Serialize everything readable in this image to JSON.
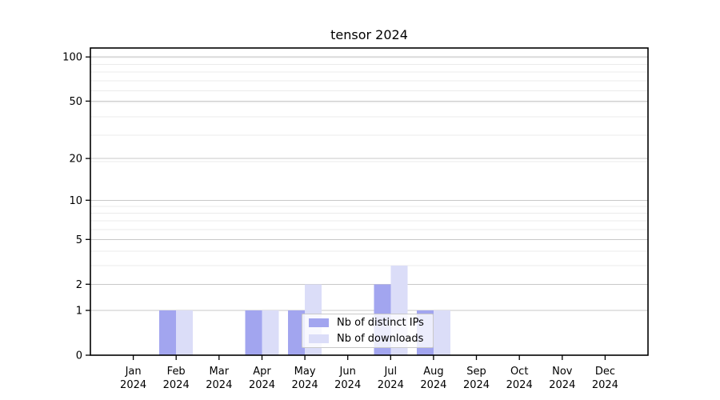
{
  "chart_data": {
    "type": "bar",
    "title": "tensor 2024",
    "categories": [
      "Jan",
      "Feb",
      "Mar",
      "Apr",
      "May",
      "Jun",
      "Jul",
      "Aug",
      "Sep",
      "Oct",
      "Nov",
      "Dec"
    ],
    "x_tick_year": "2024",
    "series": [
      {
        "name": "Nb of distinct IPs",
        "color": "#a2a5ef",
        "values": [
          0,
          1,
          0,
          1,
          1,
          0,
          2,
          1,
          0,
          0,
          0,
          0
        ]
      },
      {
        "name": "Nb of downloads",
        "color": "#dbddf8",
        "values": [
          0,
          1,
          0,
          1,
          2,
          0,
          3,
          1,
          0,
          0,
          0,
          0
        ]
      }
    ],
    "y_ticks": [
      0,
      1,
      2,
      5,
      10,
      20,
      50,
      100
    ],
    "y_minor_gridlines": [
      3,
      4,
      6,
      7,
      8,
      9,
      19,
      29,
      39,
      49,
      59,
      69,
      79,
      89,
      99
    ],
    "y_scale": "log1p",
    "ylim": [
      0,
      115
    ],
    "xlabel": "",
    "ylabel": "",
    "grid": "horizontal",
    "legend_position": "inside-bottom-center"
  }
}
